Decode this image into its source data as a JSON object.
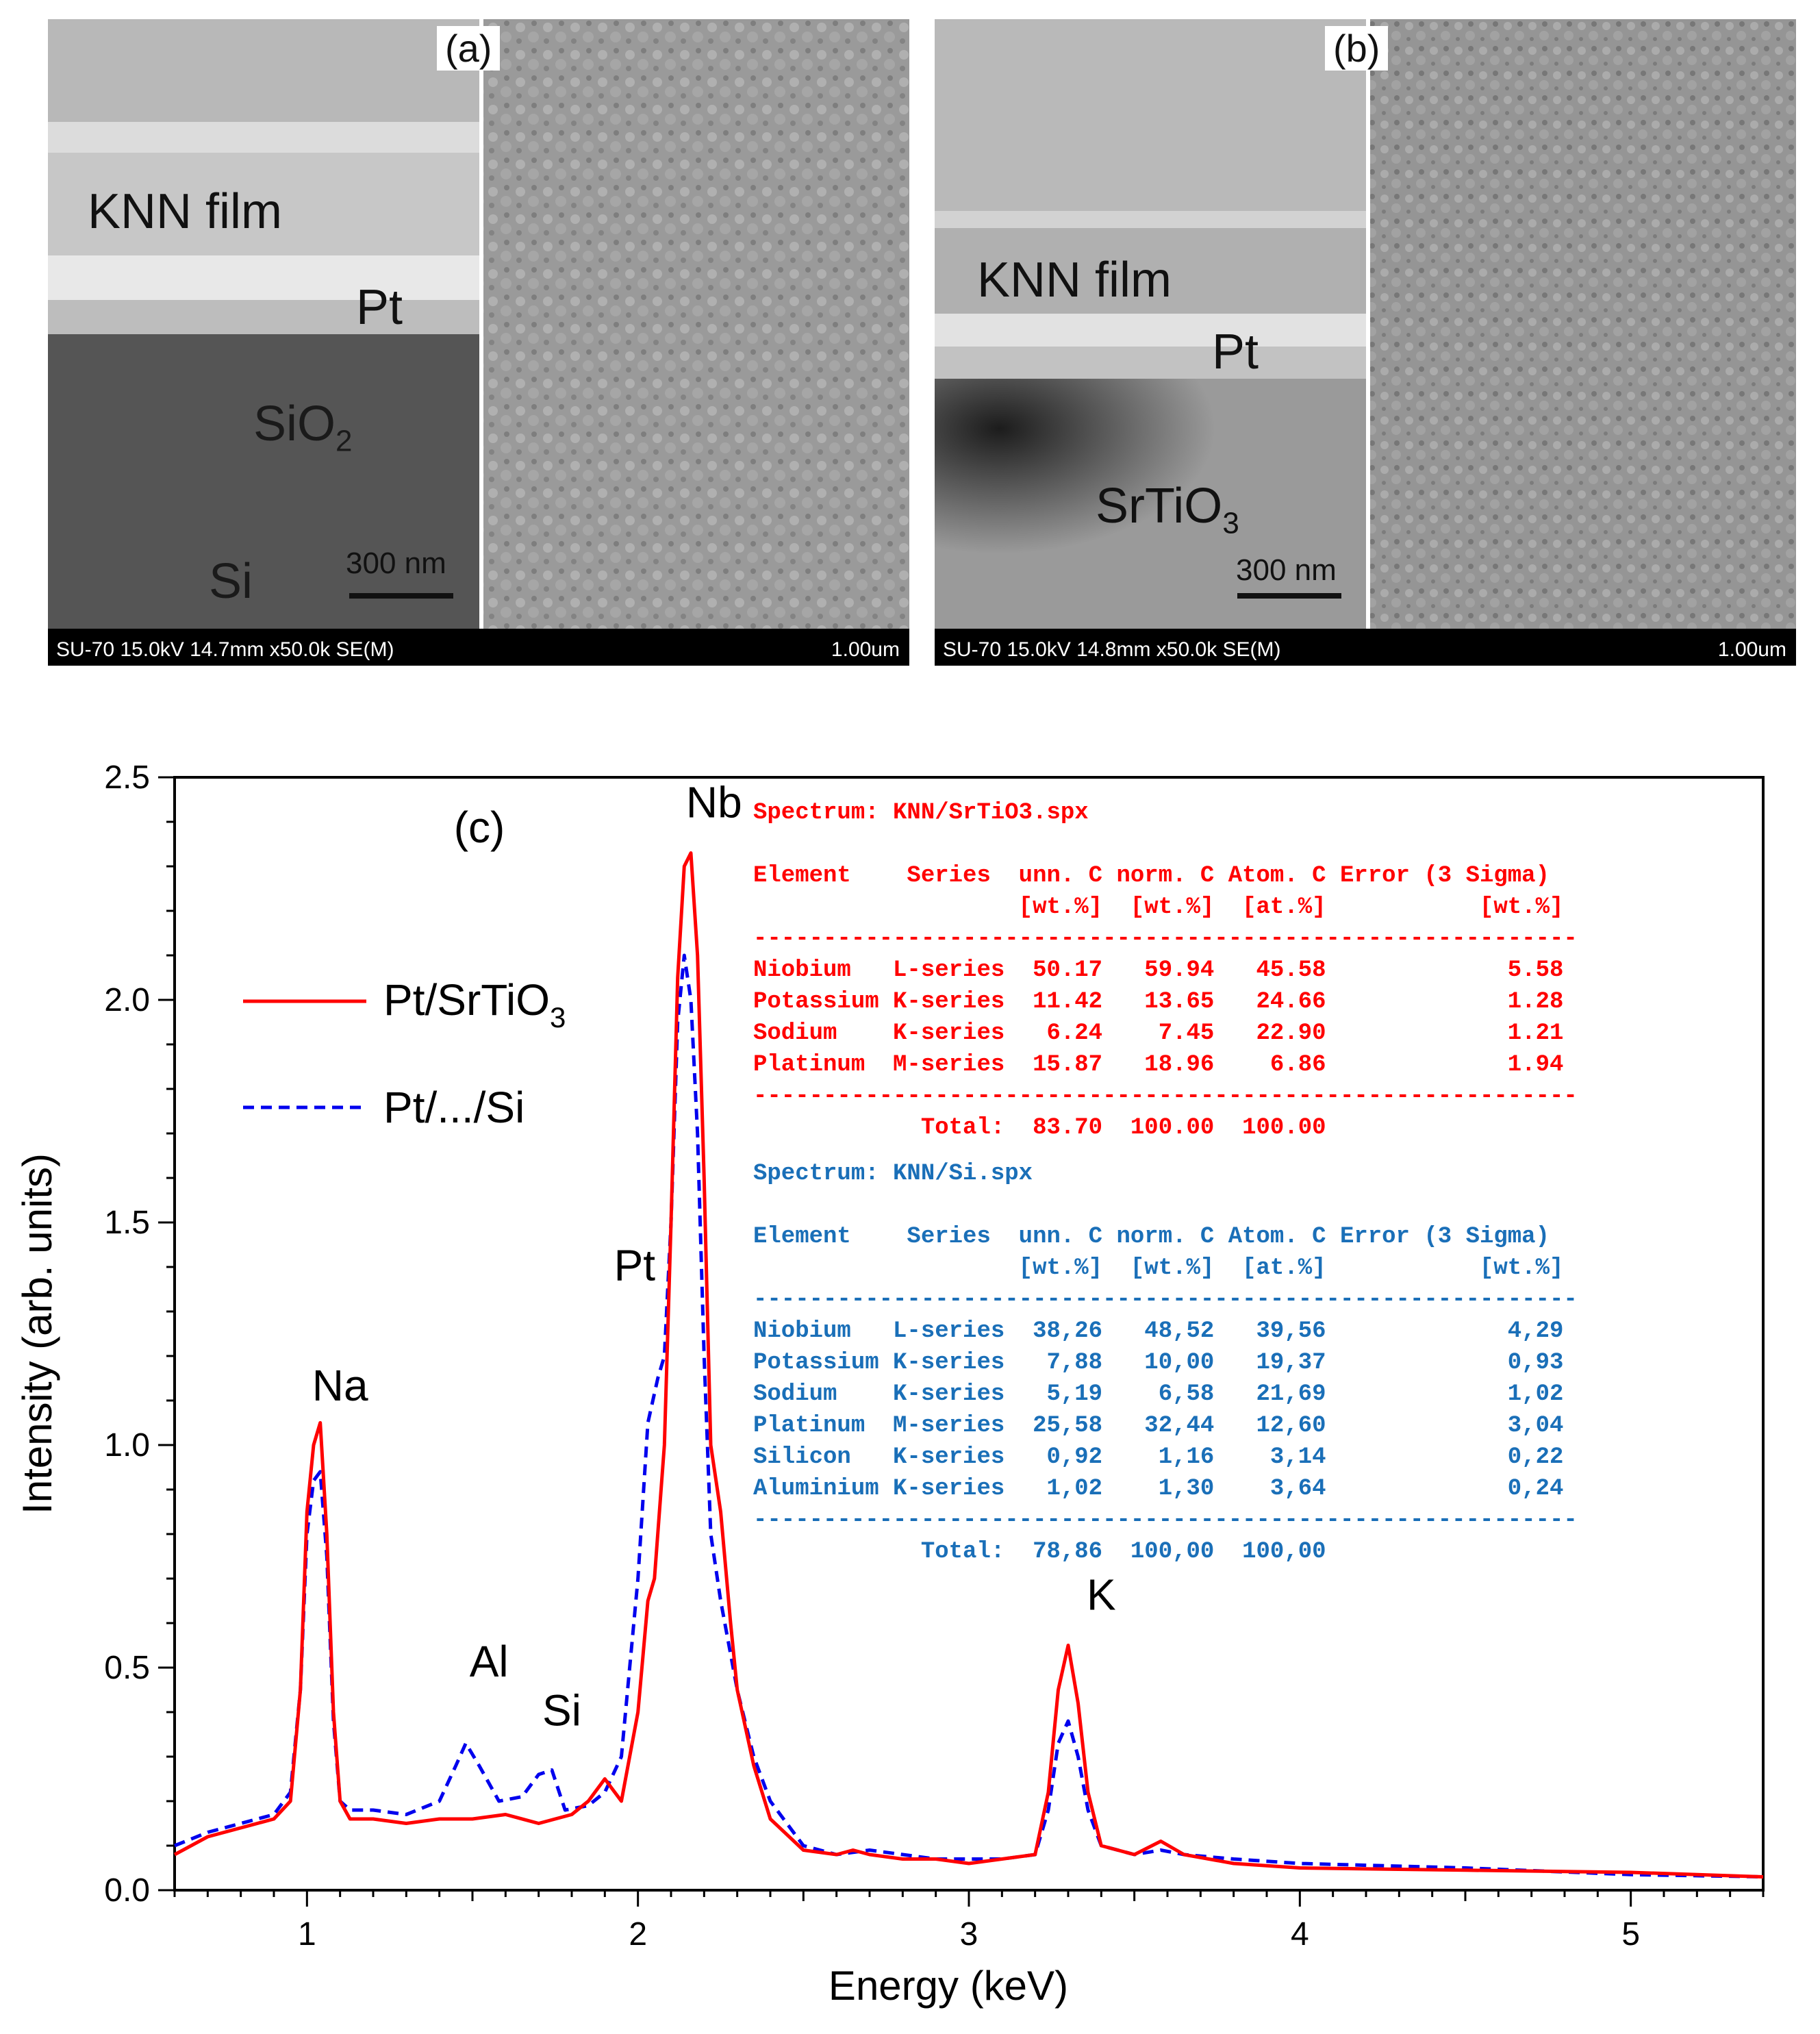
{
  "panels": {
    "a": {
      "letter": "(a)",
      "layers": {
        "film": "KNN film",
        "pt": "Pt",
        "sio2": "SiO",
        "sio2_sub": "2",
        "si": "Si"
      },
      "scale": "300 nm",
      "info": "SU-70 15.0kV 14.7mm x50.0k SE(M)",
      "scale_total": "1.00um"
    },
    "b": {
      "letter": "(b)",
      "layers": {
        "film": "KNN film",
        "pt": "Pt",
        "sto": "SrTiO",
        "sto_sub": "3"
      },
      "scale": "300 nm",
      "info": "SU-70 15.0kV 14.8mm x50.0k SE(M)",
      "scale_total": "1.00um"
    }
  },
  "chart_data": {
    "type": "line",
    "panel_label": "(c)",
    "xlabel": "Energy (keV)",
    "ylabel": "Intensity (arb. units)",
    "xlim": [
      0.6,
      5.4
    ],
    "ylim": [
      0,
      2.5
    ],
    "x_ticks": [
      "1",
      "2",
      "3",
      "4",
      "5"
    ],
    "y_ticks": [
      "0.0",
      "0.5",
      "1.0",
      "1.5",
      "2.0",
      "2.5"
    ],
    "legend_position": "upper-left",
    "series": [
      {
        "name": "Pt/SrTiO",
        "name_sub": "3",
        "color": "#ff0000",
        "style": "solid",
        "x": [
          0.6,
          0.7,
          0.8,
          0.9,
          0.95,
          0.98,
          1.0,
          1.02,
          1.04,
          1.06,
          1.08,
          1.1,
          1.13,
          1.2,
          1.3,
          1.4,
          1.5,
          1.6,
          1.7,
          1.8,
          1.85,
          1.9,
          1.95,
          2.0,
          2.03,
          2.05,
          2.08,
          2.1,
          2.12,
          2.14,
          2.16,
          2.18,
          2.2,
          2.22,
          2.25,
          2.28,
          2.3,
          2.35,
          2.4,
          2.5,
          2.6,
          2.65,
          2.7,
          2.8,
          2.9,
          3.0,
          3.1,
          3.2,
          3.24,
          3.27,
          3.3,
          3.33,
          3.36,
          3.4,
          3.5,
          3.58,
          3.65,
          3.8,
          4.0,
          4.5,
          5.0,
          5.4
        ],
        "y": [
          0.08,
          0.12,
          0.14,
          0.16,
          0.2,
          0.45,
          0.85,
          1.0,
          1.05,
          0.8,
          0.4,
          0.2,
          0.16,
          0.16,
          0.15,
          0.16,
          0.16,
          0.17,
          0.15,
          0.17,
          0.2,
          0.25,
          0.2,
          0.4,
          0.65,
          0.7,
          1.0,
          1.5,
          2.05,
          2.3,
          2.33,
          2.1,
          1.6,
          1.0,
          0.85,
          0.6,
          0.45,
          0.28,
          0.16,
          0.09,
          0.08,
          0.09,
          0.08,
          0.07,
          0.07,
          0.06,
          0.07,
          0.08,
          0.22,
          0.45,
          0.55,
          0.42,
          0.22,
          0.1,
          0.08,
          0.11,
          0.08,
          0.06,
          0.05,
          0.045,
          0.04,
          0.03
        ]
      },
      {
        "name": "Pt/.../Si",
        "color": "#0000ee",
        "style": "dashed",
        "x": [
          0.6,
          0.7,
          0.8,
          0.9,
          0.95,
          0.98,
          1.0,
          1.02,
          1.04,
          1.06,
          1.08,
          1.1,
          1.13,
          1.2,
          1.3,
          1.4,
          1.45,
          1.48,
          1.52,
          1.58,
          1.65,
          1.7,
          1.74,
          1.78,
          1.85,
          1.9,
          1.95,
          2.0,
          2.03,
          2.06,
          2.08,
          2.1,
          2.12,
          2.14,
          2.16,
          2.18,
          2.2,
          2.22,
          2.25,
          2.3,
          2.35,
          2.4,
          2.5,
          2.6,
          2.7,
          2.8,
          2.9,
          3.0,
          3.1,
          3.2,
          3.24,
          3.27,
          3.3,
          3.33,
          3.36,
          3.4,
          3.5,
          3.58,
          3.65,
          3.8,
          4.0,
          4.5,
          5.0,
          5.4
        ],
        "y": [
          0.1,
          0.13,
          0.15,
          0.17,
          0.22,
          0.45,
          0.8,
          0.92,
          0.94,
          0.75,
          0.38,
          0.2,
          0.18,
          0.18,
          0.17,
          0.2,
          0.28,
          0.33,
          0.28,
          0.2,
          0.21,
          0.26,
          0.27,
          0.18,
          0.19,
          0.22,
          0.3,
          0.7,
          1.05,
          1.15,
          1.2,
          1.5,
          1.95,
          2.1,
          2.0,
          1.7,
          1.2,
          0.8,
          0.65,
          0.45,
          0.3,
          0.2,
          0.1,
          0.08,
          0.09,
          0.08,
          0.07,
          0.07,
          0.07,
          0.08,
          0.18,
          0.33,
          0.38,
          0.3,
          0.18,
          0.1,
          0.08,
          0.09,
          0.08,
          0.07,
          0.06,
          0.05,
          0.035,
          0.03
        ]
      }
    ],
    "peak_labels": [
      {
        "text": "Na",
        "x": 1.1,
        "y": 1.1
      },
      {
        "text": "Al",
        "x": 1.55,
        "y": 0.48
      },
      {
        "text": "Si",
        "x": 1.77,
        "y": 0.37
      },
      {
        "text": "Pt",
        "x": 1.99,
        "y": 1.37
      },
      {
        "text": "Nb",
        "x": 2.23,
        "y": 2.41
      },
      {
        "text": "K",
        "x": 3.4,
        "y": 0.63
      }
    ],
    "tables": [
      {
        "color": "#ff0000",
        "lines": [
          "Spectrum: KNN/SrTiO3.spx",
          "",
          "Element    Series  unn. C norm. C Atom. C Error (3 Sigma)",
          "                   [wt.%]  [wt.%]  [at.%]           [wt.%]",
          "-----------------------------------------------------------",
          "Niobium   L-series  50.17   59.94   45.58             5.58",
          "Potassium K-series  11.42   13.65   24.66             1.28",
          "Sodium    K-series   6.24    7.45   22.90             1.21",
          "Platinum  M-series  15.87   18.96    6.86             1.94",
          "-----------------------------------------------------------",
          "            Total:  83.70  100.00  100.00"
        ]
      },
      {
        "color": "#1a6fb8",
        "lines": [
          "Spectrum: KNN/Si.spx",
          "",
          "Element    Series  unn. C norm. C Atom. C Error (3 Sigma)",
          "                   [wt.%]  [wt.%]  [at.%]           [wt.%]",
          "-----------------------------------------------------------",
          "Niobium   L-series  38,26   48,52   39,56             4,29",
          "Potassium K-series   7,88   10,00   19,37             0,93",
          "Sodium    K-series   5,19    6,58   21,69             1,02",
          "Platinum  M-series  25,58   32,44   12,60             3,04",
          "Silicon   K-series   0,92    1,16    3,14             0,22",
          "Aluminium K-series   1,02    1,30    3,64             0,24",
          "-----------------------------------------------------------",
          "            Total:  78,86  100,00  100,00"
        ]
      }
    ]
  }
}
